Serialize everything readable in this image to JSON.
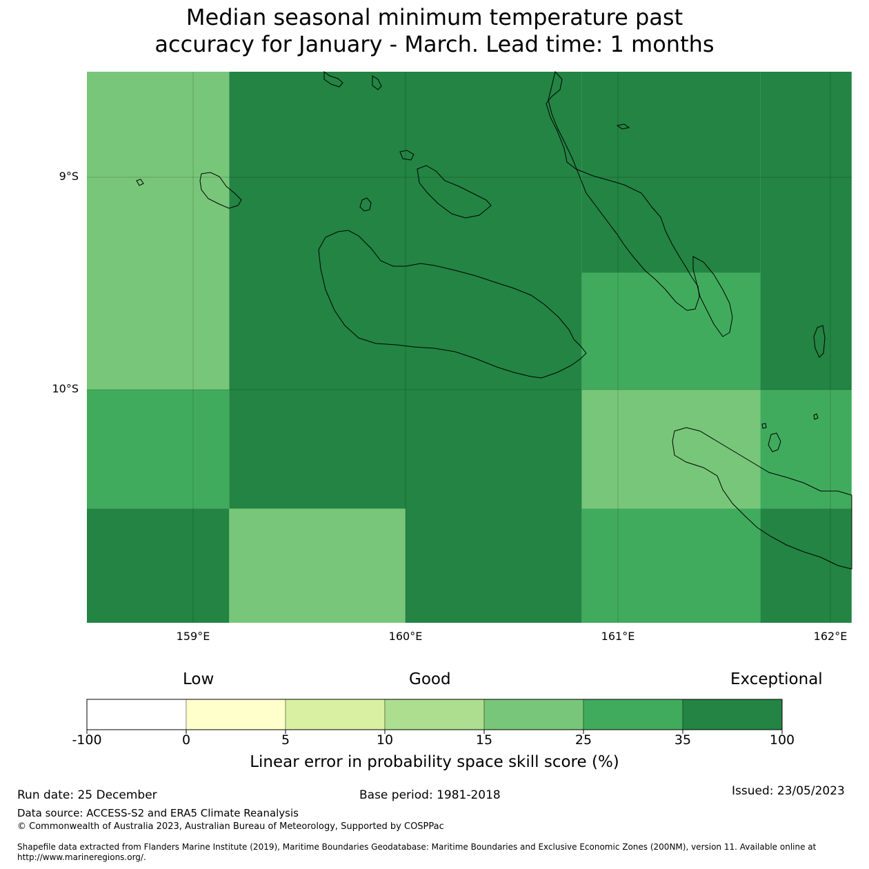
{
  "title": {
    "line1": "Median seasonal minimum temperature past",
    "line2": "accuracy for January - March. Lead time: 1 months"
  },
  "map": {
    "lat_labels": [
      "9°S",
      "10°S"
    ],
    "lon_labels": [
      "159°E",
      "160°E",
      "161°E",
      "162°E"
    ],
    "extent": {
      "lon_min": 158.5,
      "lon_max": 162.1,
      "lat_min": -11.1,
      "lat_max": -8.5
    },
    "grid_cells": [
      {
        "lon0": 158.5,
        "lon1": 159.17,
        "lat0": -8.5,
        "lat1": -10.0,
        "category": 4
      },
      {
        "lon0": 159.17,
        "lon1": 160.83,
        "lat0": -8.5,
        "lat1": -10.0,
        "category": 6
      },
      {
        "lon0": 160.83,
        "lon1": 161.67,
        "lat0": -8.5,
        "lat1": -9.45,
        "category": 6
      },
      {
        "lon0": 160.83,
        "lon1": 161.67,
        "lat0": -9.45,
        "lat1": -10.0,
        "category": 5
      },
      {
        "lon0": 161.67,
        "lon1": 162.1,
        "lat0": -8.5,
        "lat1": -10.0,
        "category": 6
      },
      {
        "lon0": 158.5,
        "lon1": 159.17,
        "lat0": -10.0,
        "lat1": -10.56,
        "category": 5
      },
      {
        "lon0": 159.17,
        "lon1": 160.83,
        "lat0": -10.0,
        "lat1": -10.56,
        "category": 6
      },
      {
        "lon0": 160.83,
        "lon1": 161.67,
        "lat0": -10.0,
        "lat1": -10.56,
        "category": 4
      },
      {
        "lon0": 161.67,
        "lon1": 162.1,
        "lat0": -10.0,
        "lat1": -10.56,
        "category": 5
      },
      {
        "lon0": 158.5,
        "lon1": 159.17,
        "lat0": -10.56,
        "lat1": -11.1,
        "category": 6
      },
      {
        "lon0": 159.17,
        "lon1": 160.0,
        "lat0": -10.56,
        "lat1": -11.1,
        "category": 4
      },
      {
        "lon0": 160.0,
        "lon1": 160.83,
        "lat0": -10.56,
        "lat1": -11.1,
        "category": 6
      },
      {
        "lon0": 160.83,
        "lon1": 161.67,
        "lat0": -10.56,
        "lat1": -11.1,
        "category": 5
      },
      {
        "lon0": 161.67,
        "lon1": 162.1,
        "lat0": -10.56,
        "lat1": -11.1,
        "category": 6
      }
    ]
  },
  "colorbar": {
    "category_labels": [
      "Low",
      "Good",
      "Exceptional"
    ],
    "ticks": [
      "-100",
      "0",
      "5",
      "10",
      "15",
      "25",
      "35",
      "100"
    ],
    "colors": [
      "#ffffff",
      "#ffffcc",
      "#d9f0a3",
      "#addd8e",
      "#78c679",
      "#41ab5d",
      "#238443"
    ],
    "title": "Linear error in probability space skill score (%)"
  },
  "footer": {
    "run_date": "Run date: 25 December",
    "base_period": "Base period: 1981-2018",
    "issued": "Issued: 23/05/2023",
    "data_source": "Data source: ACCESS-S2 and ERA5 Climate Reanalysis",
    "copyright": "© Commonwealth of Australia 2023, Australian Bureau of Meteorology, Supported by COSPPac",
    "shapefile": "Shapefile data extracted from Flanders Marine Institute (2019), Maritime Boundaries Geodatabase: Maritime Boundaries and Exclusive Economic Zones (200NM), version 11. Available online at http://www.marineregions.org/."
  }
}
